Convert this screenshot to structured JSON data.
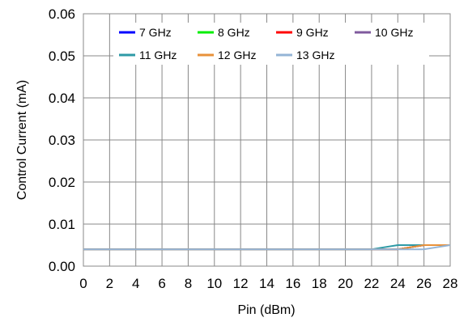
{
  "chart_data": {
    "type": "line",
    "title": "",
    "xlabel": "Pin (dBm)",
    "ylabel": "Control Current (mA)",
    "xlim": [
      0,
      28
    ],
    "ylim": [
      0,
      0.06
    ],
    "x_ticks": [
      0,
      2,
      4,
      6,
      8,
      10,
      12,
      14,
      16,
      18,
      20,
      22,
      24,
      26,
      28
    ],
    "x_tick_labels": [
      "0",
      "2",
      "4",
      "6",
      "8",
      "10",
      "12",
      "14",
      "16",
      "18",
      "20",
      "22",
      "24",
      "26",
      "28"
    ],
    "y_ticks": [
      0,
      0.01,
      0.02,
      0.03,
      0.04,
      0.05,
      0.06
    ],
    "y_tick_labels": [
      "0.00",
      "0.01",
      "0.02",
      "0.03",
      "0.04",
      "0.05",
      "0.06"
    ],
    "grid": true,
    "legend_position": "top",
    "x": [
      0,
      2,
      4,
      6,
      8,
      10,
      12,
      14,
      16,
      18,
      20,
      22,
      24,
      26,
      28
    ],
    "series": [
      {
        "name": "7 GHz",
        "color": "#0000ff",
        "values": [
          0.004,
          0.004,
          0.004,
          0.004,
          0.004,
          0.004,
          0.004,
          0.004,
          0.004,
          0.004,
          0.004,
          0.004,
          0.004,
          0.005,
          0.005
        ]
      },
      {
        "name": "8 GHz",
        "color": "#00ee00",
        "values": [
          0.004,
          0.004,
          0.004,
          0.004,
          0.004,
          0.004,
          0.004,
          0.004,
          0.004,
          0.004,
          0.004,
          0.004,
          0.004,
          0.005,
          0.005
        ]
      },
      {
        "name": "9 GHz",
        "color": "#ff0000",
        "values": [
          0.004,
          0.004,
          0.004,
          0.004,
          0.004,
          0.004,
          0.004,
          0.004,
          0.004,
          0.004,
          0.004,
          0.004,
          0.004,
          0.005,
          0.005
        ]
      },
      {
        "name": "10 GHz",
        "color": "#7f5a9e",
        "values": [
          0.004,
          0.004,
          0.004,
          0.004,
          0.004,
          0.004,
          0.004,
          0.004,
          0.004,
          0.004,
          0.004,
          0.004,
          0.004,
          0.005,
          0.005
        ]
      },
      {
        "name": "11 GHz",
        "color": "#2e9aa6",
        "values": [
          0.004,
          0.004,
          0.004,
          0.004,
          0.004,
          0.004,
          0.004,
          0.004,
          0.004,
          0.004,
          0.004,
          0.004,
          0.005,
          0.005,
          0.005
        ]
      },
      {
        "name": "12 GHz",
        "color": "#e8913a",
        "values": [
          0.004,
          0.004,
          0.004,
          0.004,
          0.004,
          0.004,
          0.004,
          0.004,
          0.004,
          0.004,
          0.004,
          0.004,
          0.004,
          0.005,
          0.005
        ]
      },
      {
        "name": "13 GHz",
        "color": "#94b4d6",
        "values": [
          0.004,
          0.004,
          0.004,
          0.004,
          0.004,
          0.004,
          0.004,
          0.004,
          0.004,
          0.004,
          0.004,
          0.004,
          0.004,
          0.004,
          0.005
        ]
      }
    ]
  }
}
